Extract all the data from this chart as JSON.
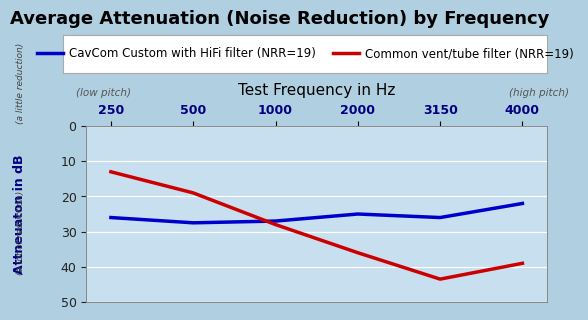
{
  "title": "Average Attenuation (Noise Reduction) by Frequency",
  "xlabel": "Test Frequency in Hz",
  "ylabel": "Attneuaton in dB",
  "xlabel_low": "(low pitch)",
  "xlabel_high": "(high pitch)",
  "ylabel_top": "(a little reduction)",
  "ylabel_bottom": "(a lot of reduction)",
  "x_ticks": [
    250,
    500,
    1000,
    2000,
    3150,
    4000
  ],
  "x_positions": [
    0,
    1,
    2,
    3,
    4,
    5
  ],
  "ylim_bottom": 50,
  "ylim_top": 0,
  "yticks": [
    0,
    10,
    20,
    30,
    40,
    50
  ],
  "blue_label": "CavCom Custom with HiFi filter (NRR=19)",
  "red_label": "Common vent/tube filter (NRR=19)",
  "blue_y": [
    26,
    27.5,
    27,
    25,
    26,
    22
  ],
  "red_y": [
    13,
    19,
    28,
    36,
    43.5,
    39
  ],
  "blue_color": "#0000cc",
  "red_color": "#cc0000",
  "bg_outer": "#b0cfe0",
  "bg_plot": "#c8dff0",
  "line_width": 2.5,
  "title_fontsize": 13,
  "legend_fontsize": 8.5,
  "tick_fontsize": 9,
  "ylabel_fontsize": 9,
  "xlabel_fontsize": 11
}
